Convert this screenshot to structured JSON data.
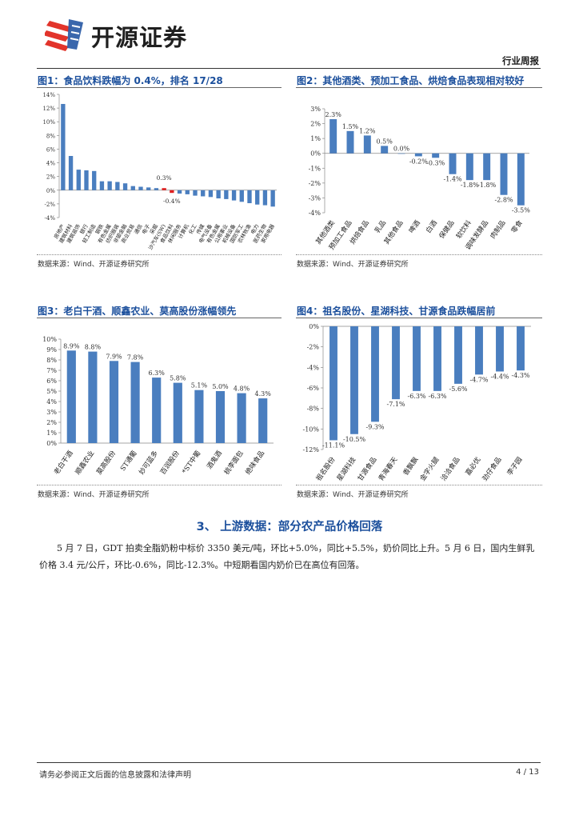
{
  "header": {
    "brand_name": "开源证券",
    "report_type": "行业周报"
  },
  "figures": [
    {
      "title": "图1：食品饮料跌幅为 0.4%，排名 17/28",
      "source": "数据来源：Wind、开源证券研究所"
    },
    {
      "title": "图2：其他酒类、预加工食品、烘焙食品表现相对较好",
      "source": "数据来源：Wind、开源证券研究所"
    },
    {
      "title": "图3：老白干酒、顺鑫农业、莫高股份涨幅领先",
      "source": "数据来源：Wind、开源证券研究所"
    },
    {
      "title": "图4：祖名股份、星湖科技、甘源食品跌幅居前",
      "source": "数据来源：Wind、开源证券研究所"
    }
  ],
  "chart_data": [
    {
      "type": "bar",
      "title": "图1：食品饮料跌幅为 0.4%，排名 17/28",
      "ylim": [
        -4,
        14
      ],
      "yticks": [
        "-4%",
        "-2%",
        "0%",
        "2%",
        "4%",
        "6%",
        "8%",
        "10%",
        "12%",
        "14%"
      ],
      "ytick_values": [
        -4,
        -2,
        0,
        2,
        4,
        6,
        8,
        10,
        12,
        14
      ],
      "categories": [
        "房地产",
        "建筑材料",
        "建筑装饰",
        "银行",
        "轻工制造",
        "钢铁",
        "有色金属",
        "纺织服装",
        "非银金融",
        "商业贸易",
        "通信",
        "电子",
        "采掘",
        "沙汽车(SW)",
        "食品饮料",
        "休闲服务",
        "计算机",
        "化工",
        "传媒",
        "电气设备",
        "有色金属",
        "公用事业",
        "机械设备",
        "国防军工",
        "农林牧渔",
        "电力",
        "医药生物",
        "家用电器"
      ],
      "values": [
        12.6,
        5.0,
        3.0,
        2.9,
        2.8,
        1.3,
        1.3,
        1.2,
        1.0,
        0.6,
        0.5,
        0.4,
        0.3,
        0.3,
        -0.4,
        -0.5,
        -0.6,
        -0.8,
        -0.9,
        -1.0,
        -1.2,
        -1.3,
        -1.5,
        -1.7,
        -1.9,
        -2.1,
        -2.2,
        -2.4
      ],
      "annotations": [
        {
          "text": "0.3%",
          "index": 13
        },
        {
          "text": "-0.4%",
          "index": 14
        }
      ],
      "colors": {
        "bar": "#4a7ebf",
        "highlight_pos": "#e02020",
        "highlight_neg": "#e02020"
      }
    },
    {
      "type": "bar",
      "title": "图2：其他酒类、预加工食品、烘焙食品表现相对较好",
      "ylim": [
        -4,
        3
      ],
      "yticks": [
        "-4%",
        "-3%",
        "-2%",
        "-1%",
        "0%",
        "1%",
        "2%",
        "3%"
      ],
      "ytick_values": [
        -4,
        -3,
        -2,
        -1,
        0,
        1,
        2,
        3
      ],
      "categories": [
        "其他酒类",
        "预加工食品",
        "烘焙食品",
        "乳品",
        "其他食品",
        "啤酒",
        "白酒",
        "保健品",
        "软饮料",
        "调味发酵品",
        "肉制品",
        "零食"
      ],
      "values": [
        2.3,
        1.5,
        1.2,
        0.5,
        0.0,
        -0.2,
        -0.3,
        -1.4,
        -1.8,
        -1.8,
        -2.8,
        -3.5
      ],
      "labels": [
        "2.3%",
        "1.5%",
        "1.2%",
        "0.5%",
        "0.0%",
        "-0.2%",
        "-0.3%",
        "-1.4%",
        "-1.8%",
        "-1.8%",
        "-2.8%",
        "-3.5%"
      ]
    },
    {
      "type": "bar",
      "title": "图3：老白干酒、顺鑫农业、莫高股份涨幅领先",
      "ylim": [
        0,
        10
      ],
      "yticks": [
        "0%",
        "1%",
        "2%",
        "3%",
        "4%",
        "5%",
        "6%",
        "7%",
        "8%",
        "9%",
        "10%"
      ],
      "ytick_values": [
        0,
        1,
        2,
        3,
        4,
        5,
        6,
        7,
        8,
        9,
        10
      ],
      "categories": [
        "老白干酒",
        "顺鑫农业",
        "莫高股份",
        "ST通葡",
        "妙可蓝多",
        "百润股份",
        "*ST中葡",
        "酒鬼酒",
        "桃李面包",
        "绝味食品"
      ],
      "values": [
        8.9,
        8.8,
        7.9,
        7.8,
        6.3,
        5.8,
        5.1,
        5.0,
        4.8,
        4.3
      ],
      "labels": [
        "8.9%",
        "8.8%",
        "7.9%",
        "7.8%",
        "6.3%",
        "5.8%",
        "5.1%",
        "5.0%",
        "4.8%",
        "4.3%"
      ]
    },
    {
      "type": "bar",
      "title": "图4：祖名股份、星湖科技、甘源食品跌幅居前",
      "ylim": [
        -12,
        0
      ],
      "yticks": [
        "-12%",
        "-10%",
        "-8%",
        "-6%",
        "-4%",
        "-2%",
        "0%"
      ],
      "ytick_values": [
        -12,
        -10,
        -8,
        -6,
        -4,
        -2,
        0
      ],
      "categories": [
        "祖名股份",
        "星湖科技",
        "甘源食品",
        "青海春天",
        "香飘飘",
        "金字火腿",
        "洽洽食品",
        "嘉必优",
        "劲仔食品",
        "李子园"
      ],
      "values": [
        -11.1,
        -10.5,
        -9.3,
        -7.1,
        -6.3,
        -6.3,
        -5.6,
        -4.7,
        -4.4,
        -4.3
      ],
      "labels": [
        "-11.1%",
        "-10.5%",
        "-9.3%",
        "-7.1%",
        "-6.3%",
        "-6.3%",
        "-5.6%",
        "-4.7%",
        "-4.4%",
        "-4.3%"
      ]
    }
  ],
  "section": {
    "title": "3、 上游数据：部分农产品价格回落",
    "paragraph": "5 月 7 日，GDT 拍卖全脂奶粉中标价 3350 美元/吨，环比+5.0%，同比+5.5%，奶价同比上升。5 月 6 日，国内生鲜乳价格 3.4 元/公斤，环比-0.6%，同比-12.3%。中短期看国内奶价已在高位有回落。"
  },
  "footer": {
    "disclaimer": "请务必参阅正文后面的信息披露和法律声明",
    "page": "4 / 13"
  }
}
